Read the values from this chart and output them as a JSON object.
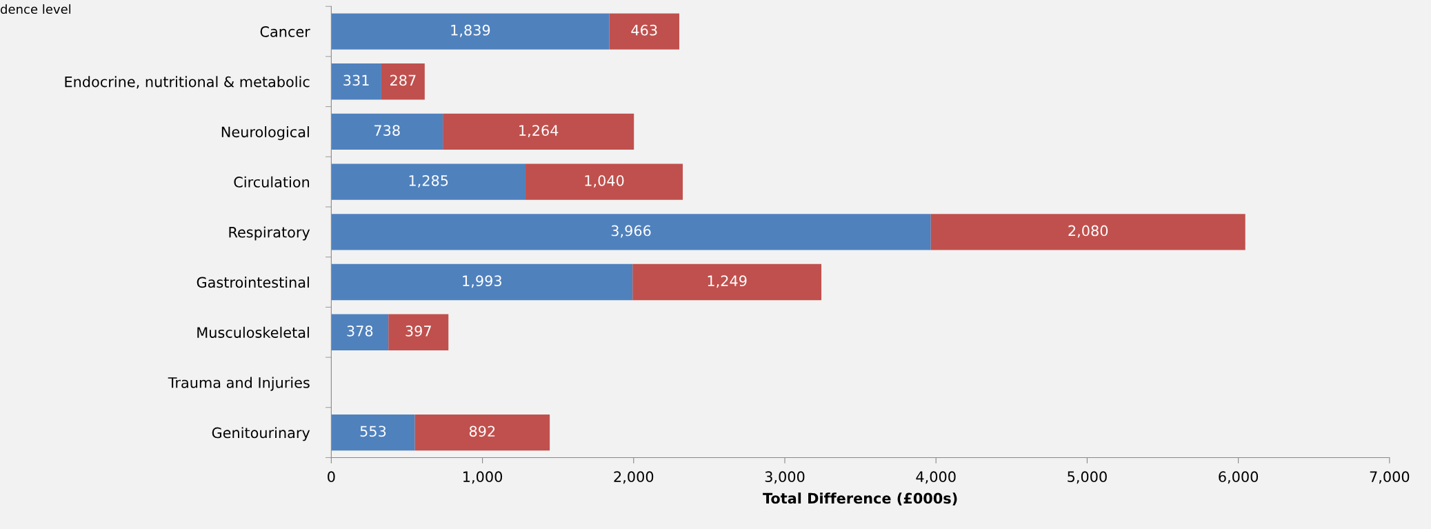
{
  "chart_data": {
    "type": "bar",
    "orientation": "horizontal",
    "stacked": true,
    "grid": false,
    "legend": false,
    "xlabel": "Total Difference (£000s)",
    "annotations": [
      "dence level"
    ],
    "categories": [
      "Cancer",
      "Endocrine, nutritional & metabolic",
      "Neurological",
      "Circulation",
      "Respiratory",
      "Gastrointestinal",
      "Musculoskeletal",
      "Trauma and Injuries",
      "Genitourinary"
    ],
    "series": [
      {
        "color": "#4f81bd",
        "values": [
          1839,
          331,
          738,
          1285,
          3966,
          1993,
          378,
          null,
          553
        ],
        "value_labels": [
          "1,839",
          "331",
          "738",
          "1,285",
          "3,966",
          "1,993",
          "378",
          null,
          "553"
        ]
      },
      {
        "color": "#c0504d",
        "values": [
          463,
          287,
          1264,
          1040,
          2080,
          1249,
          397,
          null,
          892
        ],
        "value_labels": [
          "463",
          "287",
          "1,264",
          "1,040",
          "2,080",
          "1,249",
          "397",
          null,
          "892"
        ]
      }
    ],
    "xlim": [
      0,
      7000
    ],
    "xticks": [
      0,
      {
        "value": 1000,
        "label": "1,000"
      },
      {
        "value": 2000,
        "label": "2,000"
      },
      {
        "value": 3000,
        "label": "3,000"
      },
      {
        "value": 4000,
        "label": "4,000"
      },
      {
        "value": 5000,
        "label": "5,000"
      },
      {
        "value": 6000,
        "label": "6,000"
      },
      {
        "value": 7000,
        "label": "7,000"
      }
    ]
  }
}
